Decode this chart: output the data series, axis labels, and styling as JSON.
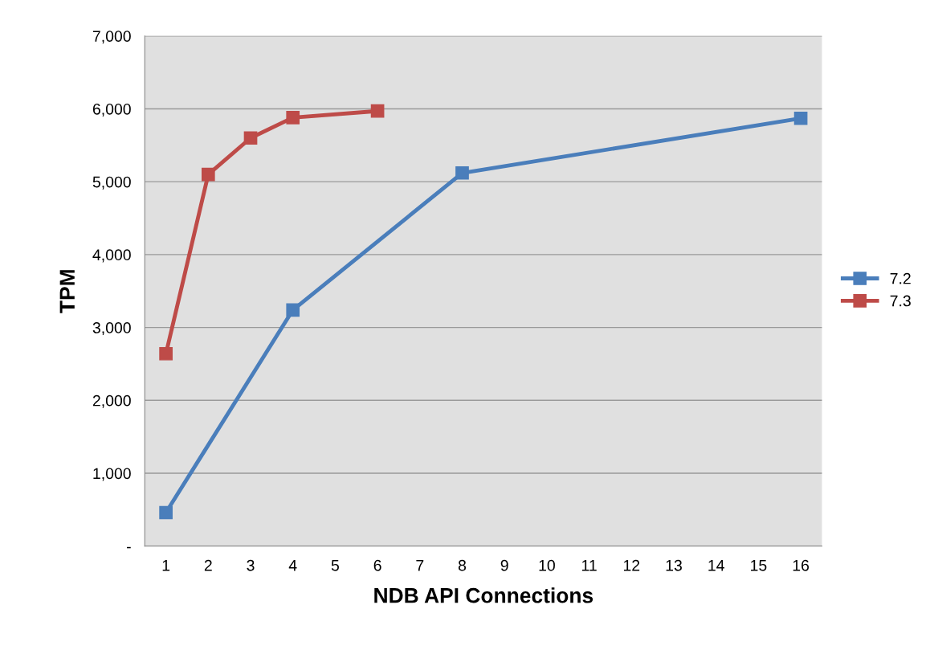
{
  "chart_data": {
    "type": "line",
    "xlabel": "NDB API Connections",
    "ylabel": "TPM",
    "xlim": [
      0.5,
      16.5
    ],
    "xticks": [
      1,
      2,
      3,
      4,
      5,
      6,
      7,
      8,
      9,
      10,
      11,
      12,
      13,
      14,
      15,
      16
    ],
    "ylim": [
      0,
      7000
    ],
    "yticks": [
      {
        "value": 0,
        "label": "-"
      },
      {
        "value": 1000,
        "label": "1,000"
      },
      {
        "value": 2000,
        "label": "2,000"
      },
      {
        "value": 3000,
        "label": "3,000"
      },
      {
        "value": 4000,
        "label": "4,000"
      },
      {
        "value": 5000,
        "label": "5,000"
      },
      {
        "value": 6000,
        "label": "6,000"
      },
      {
        "value": 7000,
        "label": "7,000"
      }
    ],
    "grid": "y",
    "legend": "right",
    "marker": "square",
    "line_style": "solid",
    "series": [
      {
        "name": "7.2",
        "color": "#4a7ebb",
        "x": [
          1,
          4,
          8,
          16
        ],
        "values": [
          460,
          3240,
          5120,
          5870
        ]
      },
      {
        "name": "7.3",
        "color": "#be4b48",
        "x": [
          1,
          2,
          3,
          4,
          6
        ],
        "values": [
          2640,
          5100,
          5600,
          5880,
          5970
        ]
      }
    ]
  }
}
